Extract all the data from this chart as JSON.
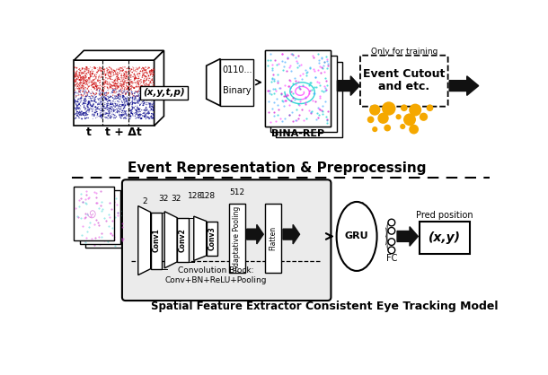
{
  "bg_color": "#ffffff",
  "title_top": "Event Representation & Preprocessing",
  "title_bottom_left": "Spatial Feature Extractor",
  "title_bottom_right": "Consistent Eye Tracking Model",
  "adaptive_label": "Adaptative Pooling",
  "flatten_label": "Flatten",
  "gru_label": "GRU",
  "fc_label": "FC",
  "pred_label": "Pred position",
  "xy_label": "(x,y)",
  "binary_top": "0110...",
  "binary_bot": "Binary",
  "bina_rep": "BINA-REP",
  "event_cutout_line1": "Event Cutout",
  "event_cutout_line2": "and etc.",
  "only_training": "Only for training",
  "xytp_label": "(x,y,t,p)",
  "t_label": "t",
  "t_dt_label": "t + Δt",
  "conv_block_note1": "Convolution Block:",
  "conv_block_note2": "Conv+BN+ReLU+Pooling",
  "gold_color": "#F5A800",
  "dark": "#111111"
}
